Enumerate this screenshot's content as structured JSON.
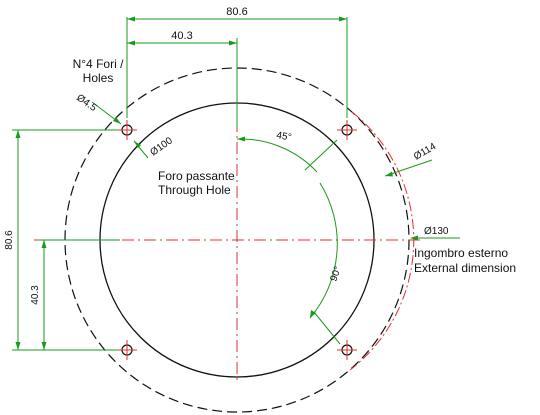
{
  "dimensions": {
    "hole_spacing_horizontal": "80.6",
    "half_spacing_horizontal": "40.3",
    "hole_spacing_vertical": "80.6",
    "half_spacing_vertical": "40.3",
    "hole_diameter": "Ø4.5",
    "through_hole_diameter": "Ø100",
    "bolt_circle_diameter": "Ø114",
    "outer_diameter": "Ø130",
    "angle_45": "45°",
    "angle_90": "90°"
  },
  "labels": {
    "holes_line1": "N°4 Fori /",
    "holes_line2": "Holes",
    "through_hole_line1": "Foro passante",
    "through_hole_line2": "Through Hole",
    "external_line1": "Ingombro esterno",
    "external_line2": "External dimension"
  },
  "colors": {
    "dimension": "#1a9a1a",
    "centerline": "#e03030",
    "outline": "#111111"
  }
}
